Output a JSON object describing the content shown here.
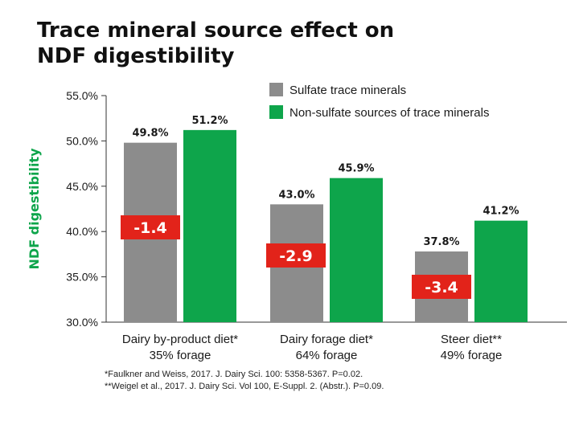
{
  "title_lines": [
    "Trace mineral source effect on",
    "NDF digestibility"
  ],
  "colors": {
    "sulfate": "#8c8c8c",
    "non_sulfate": "#0ea54b",
    "diff_box": "#e2231a",
    "axis_label": "#0ea54b"
  },
  "chart_data": {
    "type": "bar",
    "ylabel": "NDF digestibility",
    "ylim": [
      30.0,
      55.0
    ],
    "yticks": [
      55.0,
      50.0,
      45.0,
      40.0,
      35.0,
      30.0
    ],
    "ytick_labels": [
      "55.0%",
      "50.0%",
      "45.0%",
      "40.0%",
      "35.0%",
      "30.0%"
    ],
    "categories": [
      {
        "line1": "Dairy by-product diet*",
        "line2": "35% forage"
      },
      {
        "line1": "Dairy forage diet*",
        "line2": "64% forage"
      },
      {
        "line1": "Steer diet**",
        "line2": "49% forage"
      }
    ],
    "series": [
      {
        "name": "Sulfate trace minerals",
        "values": [
          49.8,
          43.0,
          37.8
        ],
        "labels": [
          "49.8%",
          "43.0%",
          "37.8%"
        ]
      },
      {
        "name": "Non-sulfate sources of trace minerals",
        "values": [
          51.2,
          45.9,
          41.2
        ],
        "labels": [
          "51.2%",
          "45.9%",
          "41.2%"
        ]
      }
    ],
    "differences": [
      "-1.4",
      "-2.9",
      "-3.4"
    ],
    "legend_position": "top-right",
    "grid": false
  },
  "footnotes": [
    "*Faulkner and Weiss, 2017. J. Dairy Sci. 100: 5358-5367. P=0.02.",
    "**Weigel et al., 2017. J. Dairy Sci. Vol 100, E-Suppl. 2. (Abstr.). P=0.09."
  ]
}
